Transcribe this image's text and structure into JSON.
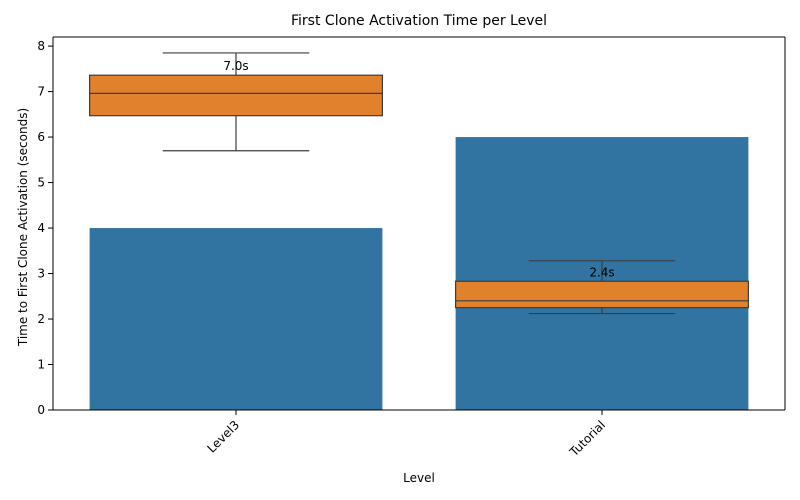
{
  "chart_data": {
    "type": "bar",
    "title": "First Clone Activation Time per Level",
    "xlabel": "Level",
    "ylabel": "Time to First Clone Activation (seconds)",
    "categories": [
      "Level3",
      "Tutorial"
    ],
    "bar_values": [
      4,
      6
    ],
    "ylim": [
      0,
      8.2
    ],
    "yticks": [
      0,
      1,
      2,
      3,
      4,
      5,
      6,
      7,
      8
    ],
    "grid": false,
    "xtick_rotation": 45,
    "colors": {
      "bar": "#3274a1",
      "box": "#e1812c",
      "box_line": "#3d3d3d"
    },
    "boxes": [
      {
        "category": "Level3",
        "whisker_low": 5.7,
        "q1": 6.47,
        "median": 6.96,
        "q3": 7.36,
        "whisker_high": 7.85,
        "label": "7.0s"
      },
      {
        "category": "Tutorial",
        "whisker_low": 2.12,
        "q1": 2.25,
        "median": 2.4,
        "q3": 2.83,
        "whisker_high": 3.28,
        "label": "2.4s"
      }
    ]
  }
}
